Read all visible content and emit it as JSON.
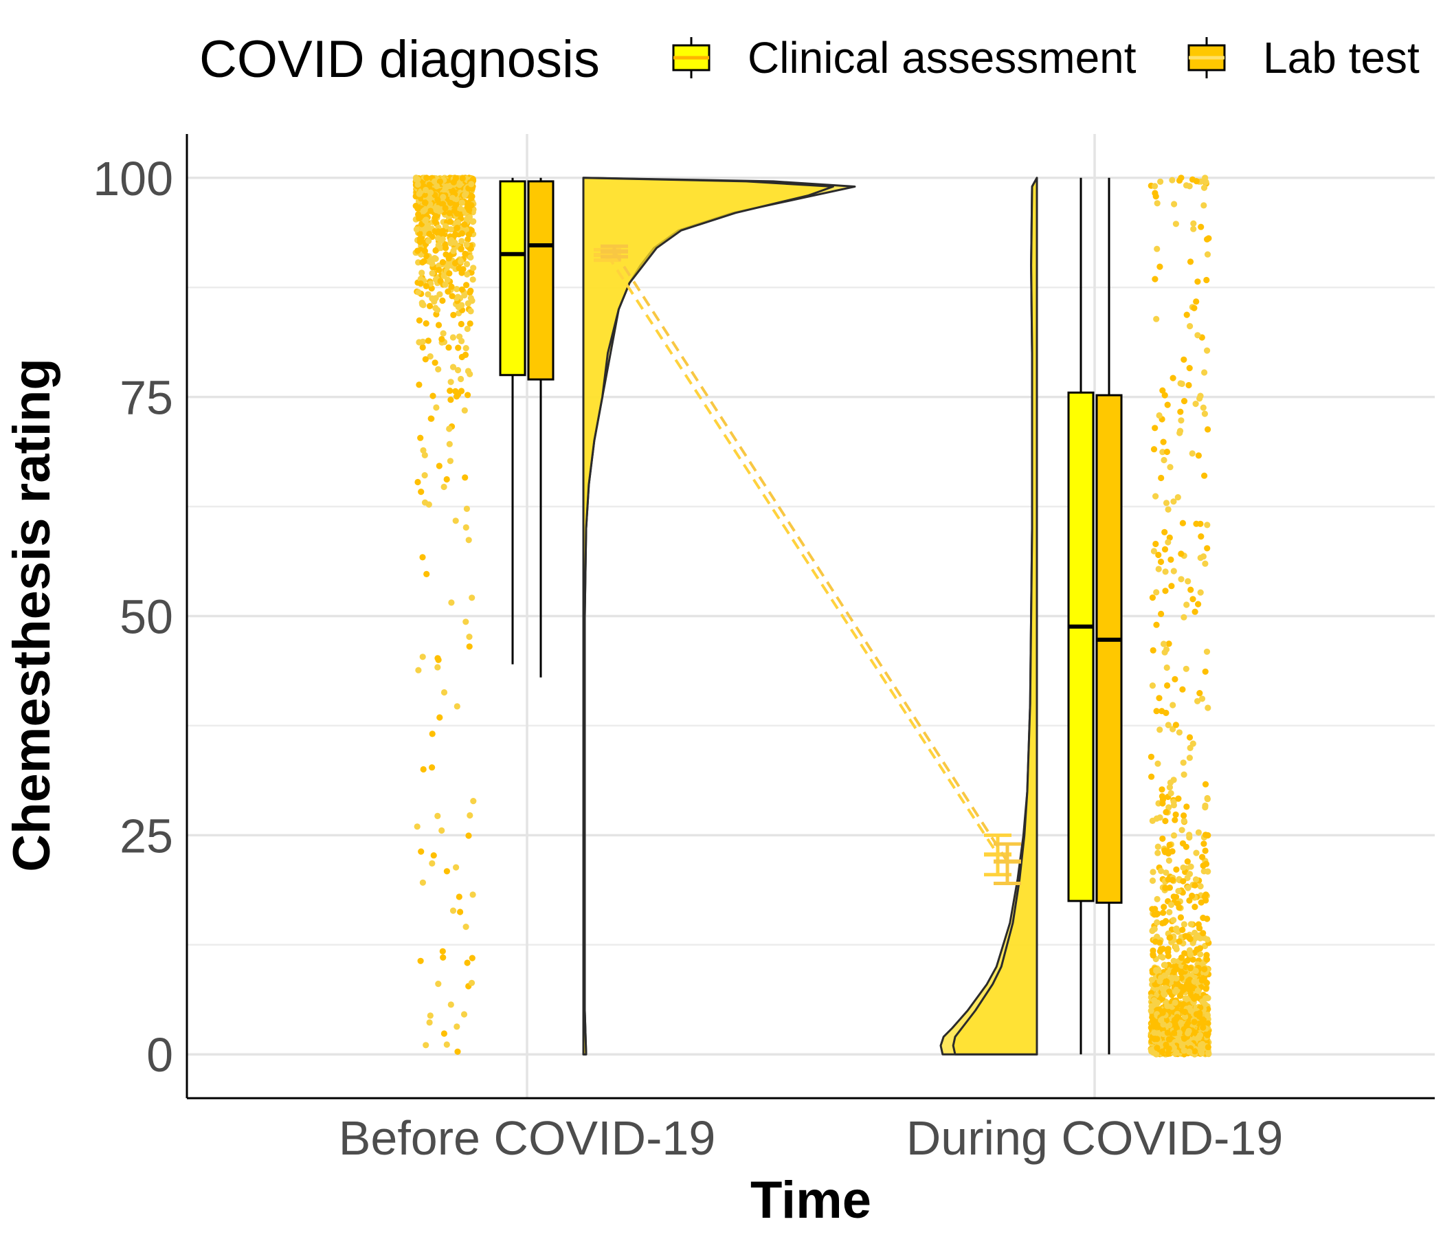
{
  "chart_data": {
    "type": "raincloud",
    "xlabel": "Time",
    "ylabel": "Chemesthesis rating",
    "ylim": [
      -5,
      105
    ],
    "y_ticks": [
      0,
      25,
      50,
      75,
      100
    ],
    "categories": [
      "Before COVID-19",
      "During COVID-19"
    ],
    "grid": true,
    "legend": {
      "title": "COVID diagnosis",
      "position": "top",
      "entries": [
        {
          "name": "Clinical assessment",
          "color": "#FFFF00"
        },
        {
          "name": "Lab test",
          "color": "#FFC800"
        }
      ]
    },
    "series": [
      {
        "name": "Clinical assessment",
        "color": "#FFFF00",
        "box": [
          {
            "category": "Before COVID-19",
            "whisker_low": 44.5,
            "q1": 77.5,
            "median": 91.3,
            "q3": 99.6,
            "whisker_high": 100
          },
          {
            "category": "During COVID-19",
            "whisker_low": 0,
            "q1": 17.5,
            "median": 48.8,
            "q3": 75.5,
            "whisker_high": 100
          }
        ],
        "mean": [
          {
            "category": "Before COVID-19",
            "value": 91.2,
            "ci": [
              90.6,
              91.8
            ]
          },
          {
            "category": "During COVID-19",
            "value": 22.8,
            "ci": [
              20.5,
              25.0
            ]
          }
        ]
      },
      {
        "name": "Lab test",
        "color": "#FFC800",
        "box": [
          {
            "category": "Before COVID-19",
            "whisker_low": 43,
            "q1": 77,
            "median": 92.3,
            "q3": 99.6,
            "whisker_high": 100
          },
          {
            "category": "During COVID-19",
            "whisker_low": 0,
            "q1": 17.3,
            "median": 47.3,
            "q3": 75.2,
            "whisker_high": 100
          }
        ],
        "mean": [
          {
            "category": "Before COVID-19",
            "value": 91.6,
            "ci": [
              91.0,
              92.2
            ]
          },
          {
            "category": "During COVID-19",
            "value": 22.0,
            "ci": [
              19.5,
              24.0
            ]
          }
        ]
      }
    ],
    "density": {
      "Before COVID-19": {
        "y": [
          0,
          5,
          10,
          20,
          30,
          40,
          50,
          60,
          65,
          70,
          75,
          80,
          85,
          88,
          90,
          92,
          94,
          96,
          98,
          99,
          99.6,
          100
        ],
        "Clinical assessment": [
          0.01,
          0.005,
          0.005,
          0.005,
          0.005,
          0.005,
          0.005,
          0.01,
          0.02,
          0.04,
          0.07,
          0.1,
          0.13,
          0.17,
          0.21,
          0.26,
          0.35,
          0.55,
          0.85,
          1.0,
          0.7,
          0
        ],
        "Lab test": [
          0.01,
          0.005,
          0.005,
          0.005,
          0.005,
          0.005,
          0.005,
          0.01,
          0.02,
          0.04,
          0.07,
          0.09,
          0.13,
          0.17,
          0.22,
          0.27,
          0.36,
          0.56,
          0.83,
          0.92,
          0.6,
          0
        ]
      },
      "During COVID-19": {
        "y": [
          0,
          1,
          2,
          3,
          5,
          8,
          10,
          15,
          20,
          25,
          30,
          40,
          50,
          60,
          70,
          80,
          90,
          99,
          100
        ],
        "Clinical assessment": [
          0.98,
          1.0,
          0.97,
          0.88,
          0.72,
          0.52,
          0.42,
          0.28,
          0.2,
          0.14,
          0.1,
          0.07,
          0.06,
          0.05,
          0.05,
          0.05,
          0.06,
          0.05,
          0
        ],
        "Lab test": [
          0.85,
          0.87,
          0.85,
          0.78,
          0.64,
          0.46,
          0.37,
          0.25,
          0.18,
          0.13,
          0.1,
          0.07,
          0.06,
          0.05,
          0.05,
          0.05,
          0.06,
          0.05,
          0
        ]
      }
    },
    "raw_points_color": [
      "#FFBF00",
      "#F8D246"
    ]
  }
}
